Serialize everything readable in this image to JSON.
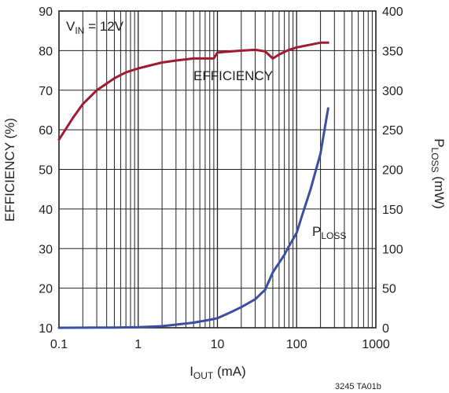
{
  "chart_data": {
    "type": "line",
    "annotation": {
      "main": "V",
      "sub": "IN",
      "rest": " = 12V"
    },
    "code": "3245 TA01b",
    "x_axis": {
      "label_main": "I",
      "label_sub": "OUT",
      "label_rest": " (mA)",
      "scale": "log",
      "range": [
        0.1,
        1000
      ],
      "ticks": [
        0.1,
        1,
        10,
        100,
        1000
      ],
      "tick_labels": [
        "0.1",
        "1",
        "10",
        "100",
        "1000"
      ],
      "grid": true
    },
    "y_left": {
      "label": "EFFICIENCY (%)",
      "range": [
        10,
        90
      ],
      "ticks": [
        10,
        20,
        30,
        40,
        50,
        60,
        70,
        80,
        90
      ],
      "tick_labels": [
        "10",
        "20",
        "30",
        "40",
        "50",
        "60",
        "70",
        "80",
        "90"
      ]
    },
    "y_right": {
      "label_main": "P",
      "label_sub": "LOSS",
      "label_rest": " (mW)",
      "range": [
        0,
        400
      ],
      "ticks": [
        0,
        50,
        100,
        150,
        200,
        250,
        300,
        350,
        400
      ],
      "tick_labels": [
        "0",
        "50",
        "100",
        "150",
        "200",
        "250",
        "300",
        "350",
        "400"
      ]
    },
    "series": [
      {
        "name": "EFFICIENCY",
        "axis": "left",
        "color": "#9e1b32",
        "x": [
          0.1,
          0.15,
          0.2,
          0.3,
          0.5,
          0.7,
          1,
          2,
          3,
          5,
          8,
          9,
          10,
          15,
          20,
          30,
          40,
          50,
          60,
          80,
          100,
          150,
          200,
          250
        ],
        "y": [
          57.5,
          63,
          66.5,
          70,
          73,
          74.5,
          75.5,
          77,
          77.5,
          78,
          78,
          78,
          79.5,
          79.8,
          80,
          80.2,
          79.8,
          78,
          79,
          80.2,
          80.8,
          81.5,
          82,
          82
        ]
      },
      {
        "name": "P",
        "name_sub": "LOSS",
        "axis": "right",
        "color": "#3a4fa0",
        "x": [
          0.1,
          0.5,
          1,
          2,
          3,
          5,
          8,
          10,
          15,
          20,
          30,
          40,
          50,
          60,
          70,
          80,
          100,
          120,
          150,
          200,
          250
        ],
        "y": [
          0,
          0.3,
          0.8,
          2,
          4,
          6.5,
          10,
          12,
          20,
          26,
          36,
          48,
          70,
          82,
          92,
          103,
          120,
          145,
          175,
          220,
          277
        ]
      }
    ]
  }
}
